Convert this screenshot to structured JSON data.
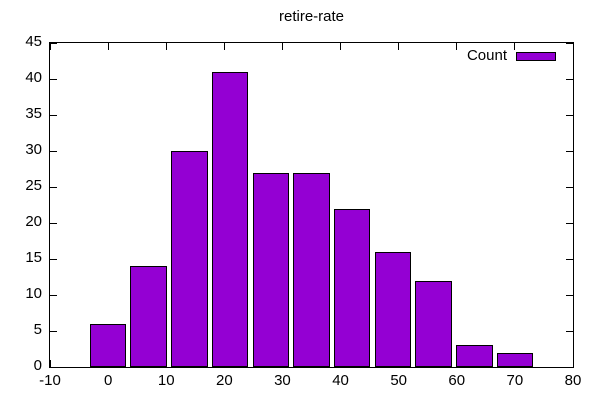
{
  "colors": {
    "background": "#ffffff",
    "bar_fill": "#9400d3",
    "bar_border": "#000000",
    "axis": "#000000",
    "text": "#000000"
  },
  "chart_data": {
    "type": "bar",
    "title": "retire-rate",
    "series_name": "Count",
    "x": [
      0,
      7,
      14,
      21,
      28,
      35,
      42,
      49,
      56,
      63,
      70
    ],
    "values": [
      6,
      14,
      30,
      41,
      27,
      27,
      22,
      16,
      12,
      3,
      2
    ],
    "bar_width": 6.3,
    "xlabel": "",
    "ylabel": "",
    "xlim": [
      -10,
      80
    ],
    "ylim": [
      0,
      45
    ],
    "x_ticks": [
      -10,
      0,
      10,
      20,
      30,
      40,
      50,
      60,
      70,
      80
    ],
    "y_ticks": [
      0,
      5,
      10,
      15,
      20,
      25,
      30,
      35,
      40,
      45
    ],
    "grid": false,
    "legend_position": "top-right"
  }
}
